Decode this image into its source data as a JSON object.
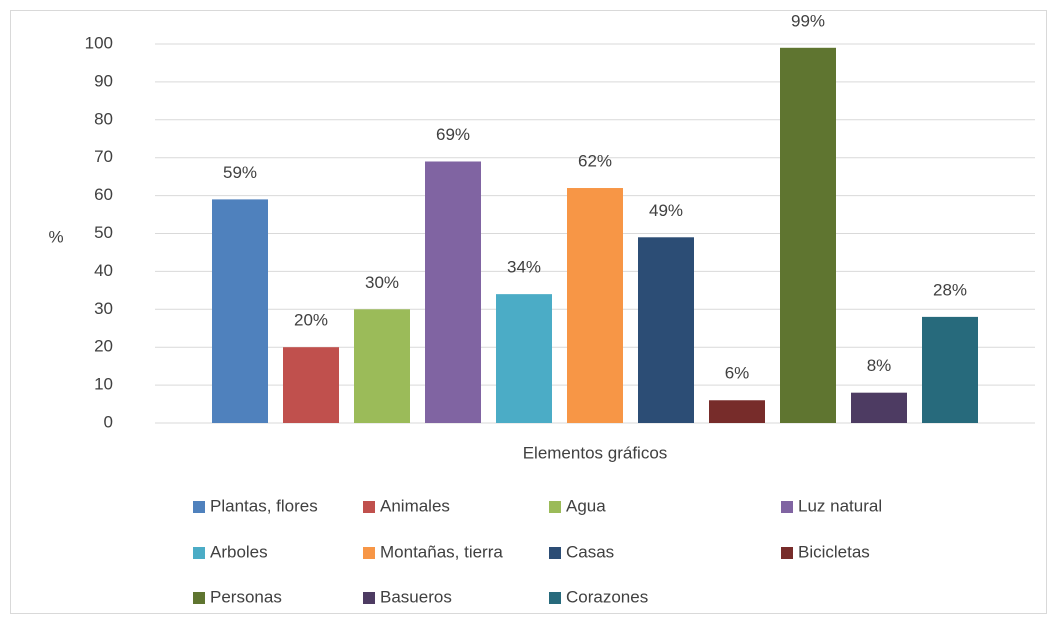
{
  "chart_data": {
    "type": "bar",
    "categories": [
      "Elementos gráficos"
    ],
    "ylabel": "%",
    "ylim": [
      0,
      100
    ],
    "yticks": [
      0,
      10,
      20,
      30,
      40,
      50,
      60,
      70,
      80,
      90,
      100
    ],
    "grid": true,
    "series": [
      {
        "name": "Plantas, flores",
        "color": "#4f81bd",
        "values": [
          59
        ],
        "value_labels": [
          "59%"
        ]
      },
      {
        "name": "Animales",
        "color": "#c0504d",
        "values": [
          20
        ],
        "value_labels": [
          "20%"
        ]
      },
      {
        "name": "Agua",
        "color": "#9bbb59",
        "values": [
          30
        ],
        "value_labels": [
          "30%"
        ]
      },
      {
        "name": "Luz natural",
        "color": "#8064a2",
        "values": [
          69
        ],
        "value_labels": [
          "69%"
        ]
      },
      {
        "name": "Arboles",
        "color": "#4bacc6",
        "values": [
          34
        ],
        "value_labels": [
          "34%"
        ]
      },
      {
        "name": "Montañas, tierra",
        "color": "#f79646",
        "values": [
          62
        ],
        "value_labels": [
          "62%"
        ]
      },
      {
        "name": "Casas",
        "color": "#2c4d75",
        "values": [
          49
        ],
        "value_labels": [
          "49%"
        ]
      },
      {
        "name": "Bicicletas",
        "color": "#772c2a",
        "values": [
          6
        ],
        "value_labels": [
          "6%"
        ]
      },
      {
        "name": "Personas",
        "color": "#5f7530",
        "values": [
          99
        ],
        "value_labels": [
          "99%"
        ]
      },
      {
        "name": "Basueros",
        "color": "#4d3b62",
        "values": [
          8
        ],
        "value_labels": [
          "8%"
        ]
      },
      {
        "name": "Corazones",
        "color": "#276a7c",
        "values": [
          28
        ],
        "value_labels": [
          "28%"
        ]
      }
    ]
  }
}
